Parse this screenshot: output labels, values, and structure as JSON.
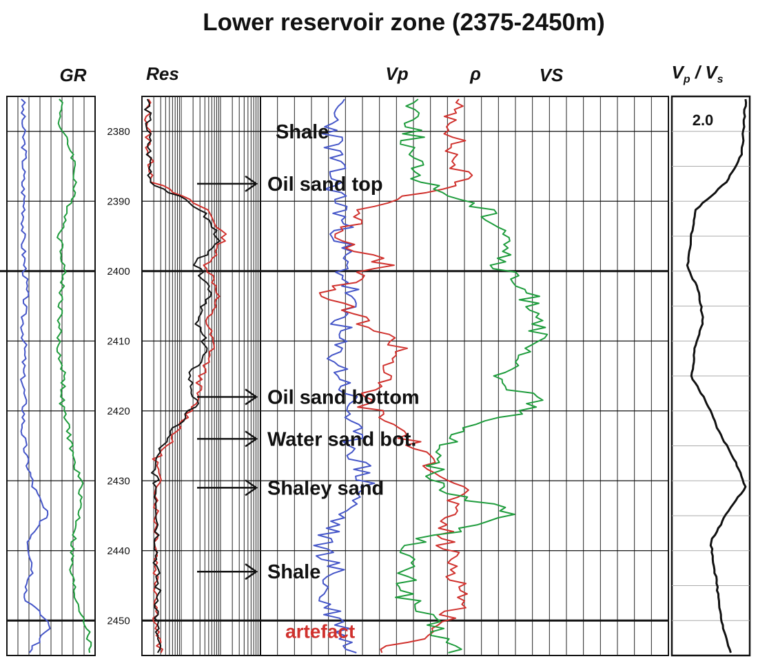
{
  "chart_data": {
    "type": "line",
    "title": "Lower reservoir zone (2375-2450m)",
    "depth_axis": {
      "unit": "m",
      "range": [
        2375,
        2455
      ],
      "ticks": [
        2380,
        2390,
        2400,
        2410,
        2420,
        2430,
        2440,
        2450
      ]
    },
    "tracks": [
      {
        "key": "gr",
        "label": "GR",
        "series": [
          {
            "color": "#4455c8",
            "values": [
              0.18,
              0.18,
              0.2,
              0.18,
              0.2,
              0.18,
              0.2,
              0.22,
              0.18,
              0.2,
              0.18,
              0.2,
              0.18,
              0.22,
              0.3,
              0.45,
              0.25,
              0.3,
              0.2,
              0.5,
              0.25
            ]
          },
          {
            "color": "#1e9c3c",
            "values": [
              0.62,
              0.6,
              0.75,
              0.78,
              0.7,
              0.6,
              0.65,
              0.62,
              0.6,
              0.58,
              0.65,
              0.62,
              0.7,
              0.75,
              0.85,
              0.82,
              0.75,
              0.72,
              0.78,
              0.9,
              0.95
            ]
          }
        ]
      },
      {
        "key": "res",
        "label": "Res",
        "series": [
          {
            "color": "#d0312d",
            "values": [
              0.05,
              0.05,
              0.06,
              0.1,
              0.55,
              0.7,
              0.55,
              0.65,
              0.55,
              0.6,
              0.5,
              0.45,
              0.3,
              0.12,
              0.14,
              0.12,
              0.13,
              0.12,
              0.13,
              0.12,
              0.15
            ]
          },
          {
            "color": "#111111",
            "values": [
              0.05,
              0.05,
              0.06,
              0.08,
              0.5,
              0.65,
              0.45,
              0.6,
              0.45,
              0.55,
              0.4,
              0.45,
              0.25,
              0.1,
              0.12,
              0.14,
              0.13,
              0.12,
              0.14,
              0.12,
              0.14
            ]
          }
        ]
      },
      {
        "key": "elastic",
        "label_vp": "Vp",
        "label_rho": "ρ",
        "label_vs": "VS",
        "series": [
          {
            "color": "#4455c8",
            "values": [
              0.18,
              0.18,
              0.18,
              0.18,
              0.2,
              0.2,
              0.2,
              0.22,
              0.2,
              0.18,
              0.2,
              0.22,
              0.22,
              0.24,
              0.26,
              0.2,
              0.15,
              0.18,
              0.15,
              0.2,
              0.22
            ]
          },
          {
            "color": "#d0312d",
            "values": [
              0.47,
              0.48,
              0.47,
              0.5,
              0.25,
              0.2,
              0.3,
              0.15,
              0.25,
              0.35,
              0.3,
              0.25,
              0.35,
              0.4,
              0.5,
              0.45,
              0.45,
              0.48,
              0.5,
              0.45,
              0.3
            ]
          },
          {
            "color": "#1e9c3c",
            "values": [
              0.38,
              0.38,
              0.36,
              0.4,
              0.55,
              0.62,
              0.58,
              0.65,
              0.7,
              0.65,
              0.58,
              0.68,
              0.5,
              0.42,
              0.44,
              0.62,
              0.38,
              0.35,
              0.36,
              0.42,
              0.48
            ]
          }
        ]
      },
      {
        "key": "ratio",
        "label_main": "V",
        "label_sub_p": "p",
        "label_slash": " / ",
        "label_sub_s": "s",
        "value_label": "2.0",
        "series": [
          {
            "color": "#111111",
            "values": [
              0.95,
              0.92,
              0.9,
              0.7,
              0.3,
              0.25,
              0.2,
              0.35,
              0.4,
              0.3,
              0.25,
              0.45,
              0.6,
              0.8,
              0.95,
              0.7,
              0.5,
              0.55,
              0.6,
              0.65,
              0.75
            ]
          }
        ]
      }
    ],
    "annotations": [
      {
        "text": "Shale",
        "depth": 2380,
        "arrow": false,
        "color": "#111111"
      },
      {
        "text": "Oil sand top",
        "depth": 2387.5,
        "arrow": true,
        "color": "#111111"
      },
      {
        "text": "Oil sand bottom",
        "depth": 2418,
        "arrow": true,
        "color": "#111111"
      },
      {
        "text": "Water sand bot.",
        "depth": 2424,
        "arrow": true,
        "color": "#111111"
      },
      {
        "text": "Shaley sand",
        "depth": 2431,
        "arrow": true,
        "color": "#111111"
      },
      {
        "text": "Shale",
        "depth": 2443,
        "arrow": true,
        "color": "#111111"
      },
      {
        "text": "artefact",
        "depth": 2451.5,
        "arrow": false,
        "color": "#d0312d"
      }
    ],
    "grid": true
  }
}
